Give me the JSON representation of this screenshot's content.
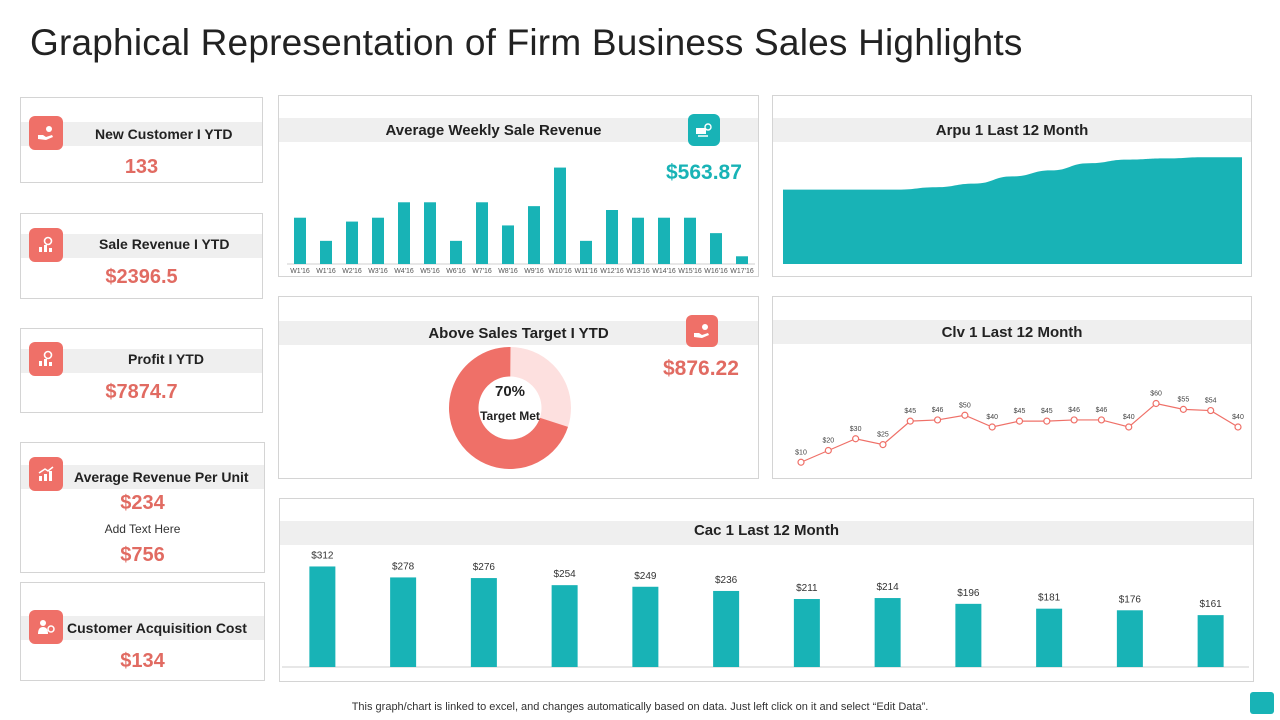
{
  "page": {
    "title": "Graphical Representation  of Firm Business Sales Highlights"
  },
  "colors": {
    "teal": "#18b3b6",
    "coral": "#ef7068",
    "coral_text": "#e16b62",
    "band": "#efefef",
    "donut_light": "#fde0df"
  },
  "kpis": {
    "new_customer": {
      "label": "New Customer I YTD",
      "value": "133",
      "icon": "hand-coin-icon"
    },
    "sale_revenue": {
      "label": "Sale Revenue I YTD",
      "value": "$2396.5",
      "icon": "gear-chart-icon"
    },
    "profit": {
      "label": "Profit I YTD",
      "value": "$7874.7",
      "icon": "gear-chart-icon"
    },
    "avg_revenue_per_unit": {
      "label": "Average Revenue Per Unit",
      "value": "$234",
      "note": "Add Text Here",
      "value2": "$756",
      "icon": "growth-chart-icon"
    },
    "customer_acquisition_cost": {
      "label": "Customer Acquisition  Cost",
      "value": "$134",
      "icon": "customer-coin-icon"
    }
  },
  "weekly_panel": {
    "value": "$563.87",
    "icon": "money-gear-icon"
  },
  "above_target_panel": {
    "value": "$876.22",
    "icon": "hand-coin-icon"
  },
  "footer": {
    "note": "This graph/chart is linked to excel,  and changes automatically based on data. Just left click on it and select “Edit Data”."
  },
  "chart_data": [
    {
      "type": "bar",
      "title": "Average Weekly Sale Revenue",
      "categories": [
        "W1'16",
        "W1'16",
        "W2'16",
        "W3'16",
        "W4'16",
        "W5'16",
        "W6'16",
        "W7'16",
        "W8'16",
        "W9'16",
        "W10'16",
        "W11'16",
        "W12'16",
        "W13'16",
        "W14'16",
        "W15'16",
        "W16'16",
        "W17'16"
      ],
      "values": [
        6,
        3,
        5.5,
        6,
        8,
        8,
        3,
        8,
        5,
        7.5,
        12.5,
        3,
        7,
        6,
        6,
        6,
        4,
        1
      ],
      "ylim": [
        0,
        14
      ],
      "xlabel": "",
      "ylabel": ""
    },
    {
      "type": "area",
      "title": "Arpu 1 Last 12 Month",
      "x": [
        1,
        2,
        3,
        4,
        5,
        6,
        7,
        8,
        9,
        10,
        11,
        12,
        13
      ],
      "values": [
        62,
        62,
        62,
        62,
        64,
        67,
        73,
        78,
        84,
        87,
        88,
        89,
        89
      ],
      "ylim": [
        0,
        100
      ]
    },
    {
      "type": "pie",
      "title": "Above Sales Target  I YTD",
      "center_label": "70%",
      "center_sublabel": "Target Met",
      "slices": [
        {
          "label": "Target Met",
          "value": 70
        },
        {
          "label": "Remaining",
          "value": 30
        }
      ]
    },
    {
      "type": "line",
      "title": "Clv 1 Last 12 Month",
      "values": [
        10,
        20,
        30,
        25,
        45,
        46,
        50,
        40,
        45,
        45,
        46,
        46,
        40,
        60,
        55,
        54,
        40
      ],
      "labels": [
        "$10",
        "$20",
        "$30",
        "$25",
        "$45",
        "$46",
        "$50",
        "$40",
        "$45",
        "$45",
        "$46",
        "$46",
        "$40",
        "$60",
        "$55",
        "$54",
        "$40"
      ],
      "ylim": [
        0,
        80
      ]
    },
    {
      "type": "bar",
      "title": "Cac 1 Last 12 Month",
      "values": [
        312,
        278,
        276,
        254,
        249,
        236,
        211,
        214,
        196,
        181,
        176,
        161
      ],
      "labels": [
        "$312",
        "$278",
        "$276",
        "$254",
        "$249",
        "$236",
        "$211",
        "$214",
        "$196",
        "$181",
        "$176",
        "$161"
      ],
      "ylim": [
        0,
        360
      ]
    }
  ]
}
